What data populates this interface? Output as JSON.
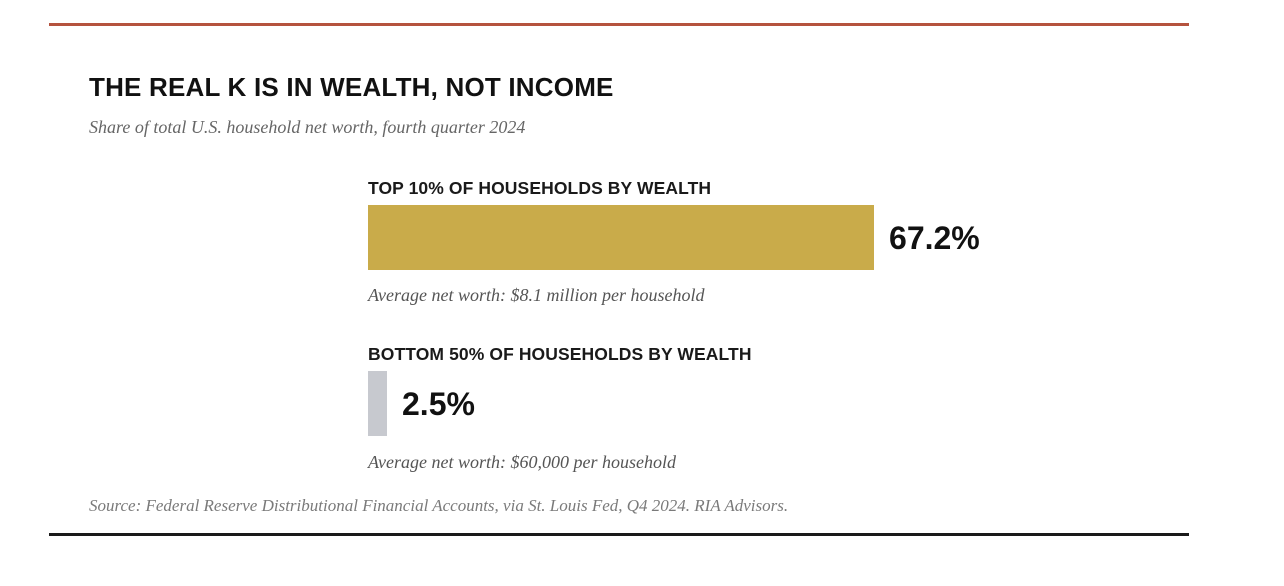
{
  "colors": {
    "top_rule": "#b5533e",
    "bottom_rule": "#1a1a1a",
    "top_bar": "#c9ab4a",
    "bottom_bar": "#c7c9cf"
  },
  "chart_data": {
    "type": "bar",
    "orientation": "horizontal",
    "title": "THE REAL K IS IN WEALTH, NOT INCOME",
    "subtitle": "Share of total U.S. household net worth, fourth quarter 2024",
    "xlim": [
      0,
      100
    ],
    "grid": false,
    "series": [
      {
        "label": "TOP 10% OF HOUSEHOLDS BY WEALTH",
        "value": 67.2,
        "value_label": "67.2%",
        "note": "Average net worth: $8.1 million per household",
        "color": "#c9ab4a"
      },
      {
        "label": "BOTTOM 50% OF HOUSEHOLDS BY WEALTH",
        "value": 2.5,
        "value_label": "2.5%",
        "note": "Average net worth: $60,000 per household",
        "color": "#c7c9cf"
      }
    ],
    "source": "Source: Federal Reserve Distributional Financial Accounts, via St. Louis Fed, Q4 2024. RIA Advisors."
  }
}
